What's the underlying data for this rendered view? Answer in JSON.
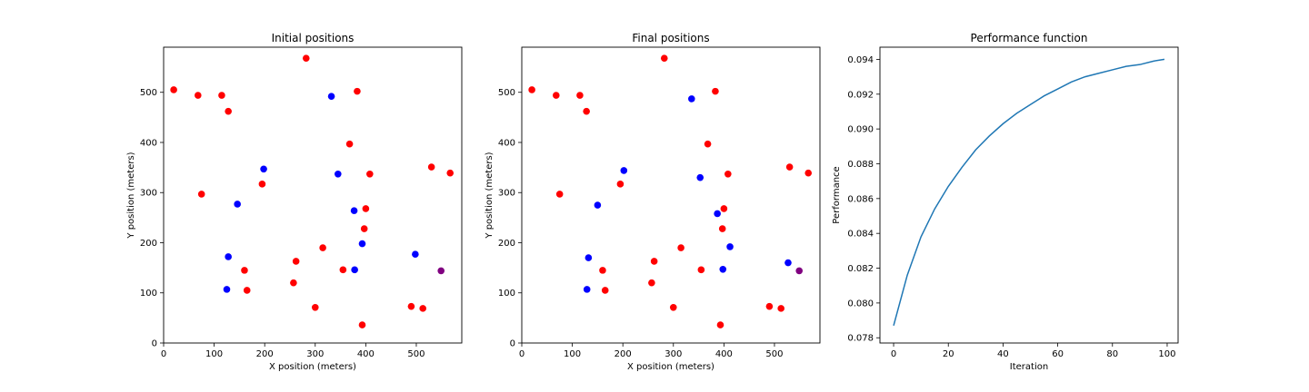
{
  "colors": {
    "red": "#ff0000",
    "blue": "#0000ff",
    "purple": "#800080",
    "line": "#1f77b4"
  },
  "chart_data": [
    {
      "type": "scatter",
      "title": "Initial positions",
      "xlabel": "X position (meters)",
      "ylabel": "Y position (meters)",
      "xlim": [
        0,
        590
      ],
      "ylim": [
        0,
        590
      ],
      "xticks": [
        0,
        100,
        200,
        300,
        400,
        500
      ],
      "yticks": [
        0,
        100,
        200,
        300,
        400,
        500
      ],
      "points": [
        {
          "x": 20,
          "y": 505,
          "color": "red"
        },
        {
          "x": 68,
          "y": 494,
          "color": "red"
        },
        {
          "x": 115,
          "y": 494,
          "color": "red"
        },
        {
          "x": 128,
          "y": 462,
          "color": "red"
        },
        {
          "x": 282,
          "y": 568,
          "color": "red"
        },
        {
          "x": 383,
          "y": 502,
          "color": "red"
        },
        {
          "x": 368,
          "y": 397,
          "color": "red"
        },
        {
          "x": 408,
          "y": 337,
          "color": "red"
        },
        {
          "x": 530,
          "y": 351,
          "color": "red"
        },
        {
          "x": 567,
          "y": 339,
          "color": "red"
        },
        {
          "x": 75,
          "y": 297,
          "color": "red"
        },
        {
          "x": 195,
          "y": 317,
          "color": "red"
        },
        {
          "x": 400,
          "y": 268,
          "color": "red"
        },
        {
          "x": 397,
          "y": 228,
          "color": "red"
        },
        {
          "x": 315,
          "y": 190,
          "color": "red"
        },
        {
          "x": 262,
          "y": 163,
          "color": "red"
        },
        {
          "x": 160,
          "y": 145,
          "color": "red"
        },
        {
          "x": 355,
          "y": 146,
          "color": "red"
        },
        {
          "x": 257,
          "y": 120,
          "color": "red"
        },
        {
          "x": 165,
          "y": 105,
          "color": "red"
        },
        {
          "x": 300,
          "y": 71,
          "color": "red"
        },
        {
          "x": 490,
          "y": 73,
          "color": "red"
        },
        {
          "x": 513,
          "y": 69,
          "color": "red"
        },
        {
          "x": 393,
          "y": 36,
          "color": "red"
        },
        {
          "x": 332,
          "y": 492,
          "color": "blue"
        },
        {
          "x": 198,
          "y": 347,
          "color": "blue"
        },
        {
          "x": 345,
          "y": 337,
          "color": "blue"
        },
        {
          "x": 146,
          "y": 277,
          "color": "blue"
        },
        {
          "x": 377,
          "y": 264,
          "color": "blue"
        },
        {
          "x": 393,
          "y": 198,
          "color": "blue"
        },
        {
          "x": 128,
          "y": 172,
          "color": "blue"
        },
        {
          "x": 498,
          "y": 177,
          "color": "blue"
        },
        {
          "x": 378,
          "y": 146,
          "color": "blue"
        },
        {
          "x": 125,
          "y": 107,
          "color": "blue"
        },
        {
          "x": 549,
          "y": 144,
          "color": "purple"
        }
      ]
    },
    {
      "type": "scatter",
      "title": "Final positions",
      "xlabel": "X position (meters)",
      "ylabel": "Y position (meters)",
      "xlim": [
        0,
        590
      ],
      "ylim": [
        0,
        590
      ],
      "xticks": [
        0,
        100,
        200,
        300,
        400,
        500
      ],
      "yticks": [
        0,
        100,
        200,
        300,
        400,
        500
      ],
      "points": [
        {
          "x": 20,
          "y": 505,
          "color": "red"
        },
        {
          "x": 68,
          "y": 494,
          "color": "red"
        },
        {
          "x": 115,
          "y": 494,
          "color": "red"
        },
        {
          "x": 128,
          "y": 462,
          "color": "red"
        },
        {
          "x": 282,
          "y": 568,
          "color": "red"
        },
        {
          "x": 383,
          "y": 502,
          "color": "red"
        },
        {
          "x": 368,
          "y": 397,
          "color": "red"
        },
        {
          "x": 408,
          "y": 337,
          "color": "red"
        },
        {
          "x": 530,
          "y": 351,
          "color": "red"
        },
        {
          "x": 567,
          "y": 339,
          "color": "red"
        },
        {
          "x": 75,
          "y": 297,
          "color": "red"
        },
        {
          "x": 195,
          "y": 317,
          "color": "red"
        },
        {
          "x": 400,
          "y": 268,
          "color": "red"
        },
        {
          "x": 397,
          "y": 228,
          "color": "red"
        },
        {
          "x": 315,
          "y": 190,
          "color": "red"
        },
        {
          "x": 262,
          "y": 163,
          "color": "red"
        },
        {
          "x": 160,
          "y": 145,
          "color": "red"
        },
        {
          "x": 355,
          "y": 146,
          "color": "red"
        },
        {
          "x": 257,
          "y": 120,
          "color": "red"
        },
        {
          "x": 165,
          "y": 105,
          "color": "red"
        },
        {
          "x": 300,
          "y": 71,
          "color": "red"
        },
        {
          "x": 490,
          "y": 73,
          "color": "red"
        },
        {
          "x": 513,
          "y": 69,
          "color": "red"
        },
        {
          "x": 393,
          "y": 36,
          "color": "red"
        },
        {
          "x": 336,
          "y": 487,
          "color": "blue"
        },
        {
          "x": 202,
          "y": 344,
          "color": "blue"
        },
        {
          "x": 353,
          "y": 330,
          "color": "blue"
        },
        {
          "x": 150,
          "y": 275,
          "color": "blue"
        },
        {
          "x": 387,
          "y": 258,
          "color": "blue"
        },
        {
          "x": 412,
          "y": 192,
          "color": "blue"
        },
        {
          "x": 132,
          "y": 170,
          "color": "blue"
        },
        {
          "x": 527,
          "y": 160,
          "color": "blue"
        },
        {
          "x": 398,
          "y": 147,
          "color": "blue"
        },
        {
          "x": 129,
          "y": 107,
          "color": "blue"
        },
        {
          "x": 549,
          "y": 144,
          "color": "purple"
        }
      ]
    },
    {
      "type": "line",
      "title": "Performance function",
      "xlabel": "Iteration",
      "ylabel": "Performance",
      "xlim": [
        -5,
        104
      ],
      "ylim": [
        0.0777,
        0.0947
      ],
      "xticks": [
        0,
        20,
        40,
        60,
        80,
        100
      ],
      "yticks": [
        0.078,
        0.08,
        0.082,
        0.084,
        0.086,
        0.088,
        0.09,
        0.092,
        0.094
      ],
      "ytick_labels": [
        "0.078",
        "0.080",
        "0.082",
        "0.084",
        "0.086",
        "0.088",
        "0.090",
        "0.092",
        "0.094"
      ],
      "series": [
        {
          "x": [
            0,
            5,
            10,
            15,
            20,
            25,
            30,
            35,
            40,
            45,
            50,
            55,
            60,
            65,
            70,
            75,
            80,
            85,
            90,
            95,
            99
          ],
          "y": [
            0.0787,
            0.0816,
            0.0838,
            0.0854,
            0.0867,
            0.0878,
            0.0888,
            0.0896,
            0.0903,
            0.0909,
            0.0914,
            0.0919,
            0.0923,
            0.0927,
            0.093,
            0.0932,
            0.0934,
            0.0936,
            0.0937,
            0.0939,
            0.094
          ]
        }
      ]
    }
  ]
}
